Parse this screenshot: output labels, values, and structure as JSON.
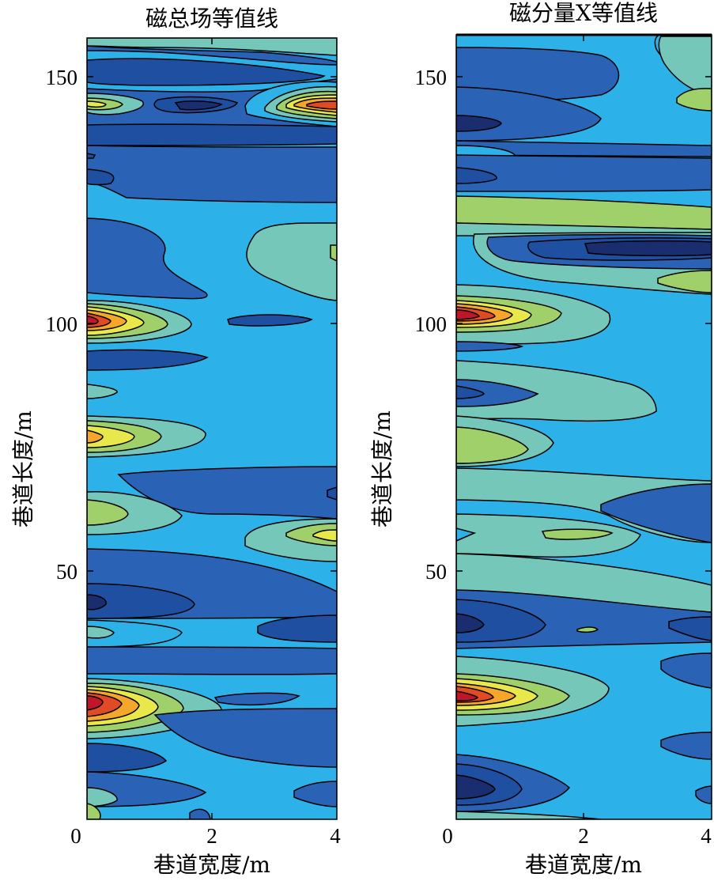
{
  "chart_data": [
    {
      "type": "heatmap",
      "subtype": "filled-contour",
      "title": "磁总场等值线",
      "xlabel": "巷道宽度/m",
      "ylabel": "巷道长度/m",
      "xlim": [
        0,
        4
      ],
      "ylim": [
        1,
        158
      ],
      "x_ticks": [
        0,
        2,
        4
      ],
      "y_ticks": [
        50,
        100,
        150
      ],
      "colormap": [
        "#1a2d6e",
        "#1f4fa0",
        "#2a62b5",
        "#2cb2e8",
        "#75c7b9",
        "#9fd06a",
        "#e8e84a",
        "#f4a72a",
        "#e04a25",
        "#c0152a"
      ],
      "hotspots": [
        {
          "y": 145,
          "x_left_level": 5,
          "x_right_level": 9
        },
        {
          "y": 101,
          "x_left_level": 9
        },
        {
          "y": 77,
          "x_left_level": 6
        },
        {
          "y": 62,
          "x_left_level": 5
        },
        {
          "y": 57,
          "x_right_level": 6
        },
        {
          "y": 24,
          "x_left_level": 9
        }
      ],
      "lows": [
        {
          "y": 145,
          "x": 1.8,
          "level": 0
        },
        {
          "y": 44,
          "x": 0.3,
          "level": 0
        }
      ]
    },
    {
      "type": "heatmap",
      "subtype": "filled-contour",
      "title": "磁分量X等值线",
      "xlabel": "巷道宽度/m",
      "ylabel": "巷道长度/m",
      "xlim": [
        0,
        4
      ],
      "ylim": [
        1,
        158
      ],
      "x_ticks": [
        0,
        2,
        4
      ],
      "y_ticks": [
        50,
        100,
        150
      ],
      "colormap": [
        "#1a2d6e",
        "#1f4fa0",
        "#2a62b5",
        "#2cb2e8",
        "#75c7b9",
        "#9fd06a",
        "#e8e84a",
        "#f4a72a",
        "#e04a25",
        "#c0152a"
      ],
      "hotspots": [
        {
          "y": 101,
          "x_left_level": 9
        },
        {
          "y": 24,
          "x_left_level": 9
        },
        {
          "y": 145,
          "x_right_level": 5
        }
      ],
      "lows": [
        {
          "y": 115,
          "x": 3.2,
          "level": 0
        },
        {
          "y": 40,
          "x": 0.2,
          "level": 0
        },
        {
          "y": 7,
          "x": 0.3,
          "level": 0
        }
      ]
    }
  ]
}
